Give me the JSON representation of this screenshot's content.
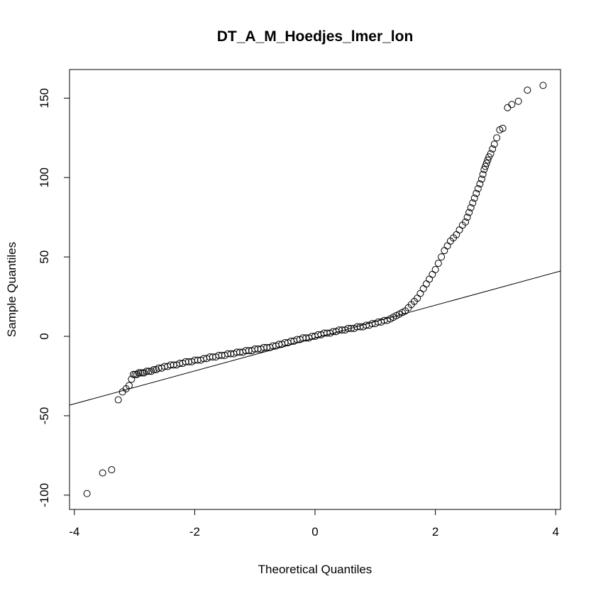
{
  "chart_data": {
    "type": "scatter",
    "title": "DT_A_M_Hoedjes_lmer_lon",
    "xlabel": "Theoretical Quantiles",
    "ylabel": "Sample Quantiles",
    "xlim": [
      -4.08,
      4.08
    ],
    "ylim": [
      -109,
      168
    ],
    "x_ticks": [
      -4,
      -2,
      0,
      2,
      4
    ],
    "y_ticks": [
      -100,
      -50,
      0,
      50,
      100,
      150
    ],
    "grid": false,
    "legend": "none",
    "reference_line": {
      "intercept": -1.1,
      "slope": 10.35
    },
    "series": [
      {
        "marker": "open-circle",
        "x": [
          -3.79,
          -3.53,
          -3.38,
          -3.27,
          -3.2,
          -3.14,
          -3.09,
          -3.05,
          -3.02,
          -2.99,
          -2.96,
          -2.93,
          -2.9,
          -2.87,
          -2.84,
          -2.8,
          -2.76,
          -2.72,
          -2.68,
          -2.64,
          -2.6,
          -2.55,
          -2.5,
          -2.45,
          -2.4,
          -2.35,
          -2.3,
          -2.25,
          -2.2,
          -2.15,
          -2.1,
          -2.05,
          -2.0,
          -1.95,
          -1.9,
          -1.85,
          -1.8,
          -1.75,
          -1.7,
          -1.65,
          -1.6,
          -1.55,
          -1.5,
          -1.45,
          -1.4,
          -1.35,
          -1.3,
          -1.25,
          -1.2,
          -1.15,
          -1.1,
          -1.05,
          -1.0,
          -0.95,
          -0.9,
          -0.85,
          -0.8,
          -0.75,
          -0.7,
          -0.65,
          -0.6,
          -0.55,
          -0.5,
          -0.45,
          -0.4,
          -0.35,
          -0.3,
          -0.25,
          -0.2,
          -0.15,
          -0.1,
          -0.05,
          0.0,
          0.05,
          0.1,
          0.15,
          0.2,
          0.25,
          0.3,
          0.35,
          0.4,
          0.45,
          0.5,
          0.55,
          0.6,
          0.65,
          0.7,
          0.75,
          0.8,
          0.85,
          0.9,
          0.95,
          1.0,
          1.05,
          1.1,
          1.15,
          1.2,
          1.25,
          1.3,
          1.35,
          1.4,
          1.45,
          1.5,
          1.55,
          1.6,
          1.65,
          1.7,
          1.75,
          1.8,
          1.85,
          1.9,
          1.95,
          2.0,
          2.05,
          2.1,
          2.15,
          2.2,
          2.25,
          2.3,
          2.35,
          2.4,
          2.45,
          2.5,
          2.53,
          2.56,
          2.59,
          2.62,
          2.65,
          2.68,
          2.71,
          2.74,
          2.77,
          2.79,
          2.81,
          2.83,
          2.85,
          2.87,
          2.89,
          2.92,
          2.95,
          2.98,
          3.02,
          3.07,
          3.12,
          3.2,
          3.27,
          3.38,
          3.53,
          3.79
        ],
        "y": [
          -99,
          -86,
          -84,
          -40,
          -35,
          -33,
          -31,
          -27,
          -24,
          -24,
          -24,
          -23,
          -23,
          -23,
          -23,
          -22,
          -22,
          -22,
          -21,
          -21,
          -20,
          -20,
          -19,
          -19,
          -18,
          -18,
          -18,
          -17,
          -17,
          -16,
          -16,
          -16,
          -15,
          -15,
          -15,
          -14,
          -14,
          -13,
          -13,
          -13,
          -12,
          -12,
          -12,
          -11,
          -11,
          -11,
          -10,
          -10,
          -10,
          -9,
          -9,
          -9,
          -8,
          -8,
          -8,
          -7,
          -7,
          -7,
          -6,
          -6,
          -5,
          -5,
          -4,
          -4,
          -3,
          -3,
          -2,
          -2,
          -1,
          -1,
          -1,
          0,
          0,
          1,
          1,
          2,
          2,
          2,
          3,
          3,
          4,
          4,
          4,
          5,
          5,
          5,
          6,
          6,
          6,
          7,
          7,
          8,
          8,
          9,
          9,
          10,
          10,
          11,
          12,
          13,
          14,
          15,
          16,
          18,
          20,
          22,
          24,
          27,
          30,
          33,
          36,
          39,
          42,
          46,
          50,
          54,
          57,
          60,
          62,
          64,
          67,
          70,
          72,
          75,
          78,
          81,
          84,
          87,
          90,
          93,
          96,
          99,
          102,
          105,
          107,
          109,
          111,
          113,
          115,
          118,
          121,
          125,
          130,
          131,
          144,
          146,
          148,
          155,
          158
        ]
      }
    ]
  }
}
